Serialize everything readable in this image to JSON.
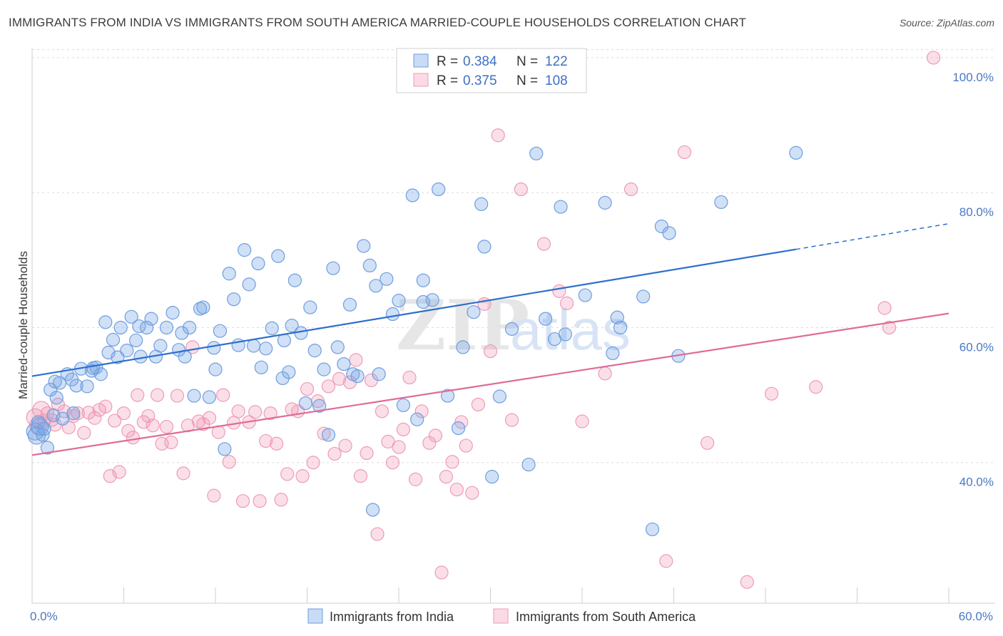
{
  "title": "IMMIGRANTS FROM INDIA VS IMMIGRANTS FROM SOUTH AMERICA MARRIED-COUPLE HOUSEHOLDS CORRELATION CHART",
  "source": "Source: ZipAtlas.com",
  "watermark": {
    "zip": "ZIP",
    "atlas": "atlas"
  },
  "colors": {
    "india_fill": "rgba(120,165,230,0.35)",
    "india_stroke": "#6f9ede",
    "india_line": "#2e6fcc",
    "sa_fill": "rgba(240,150,180,0.30)",
    "sa_stroke": "#ee9bb8",
    "sa_line": "#e06b96"
  },
  "legend": {
    "rows": [
      {
        "r_label": "R = ",
        "r_value": "0.384",
        "n_label": "N = ",
        "n_value": "122"
      },
      {
        "r_label": "R = ",
        "r_value": "0.375",
        "n_label": "N = ",
        "n_value": "108"
      }
    ]
  },
  "chart_data": {
    "type": "scatter",
    "ylabel": "Married-couple Households",
    "xlim": [
      0,
      60
    ],
    "ylim": [
      20,
      102
    ],
    "x_tick_labels": [
      "0.0%",
      "60.0%"
    ],
    "y_ticks": [
      {
        "value": 40,
        "label": "40.0%"
      },
      {
        "value": 60,
        "label": "60.0%"
      },
      {
        "value": 80,
        "label": "80.0%"
      },
      {
        "value": 100,
        "label": "100.0%"
      }
    ],
    "series": [
      {
        "name": "Immigrants from India",
        "r": 0.384,
        "n": 122,
        "trend": {
          "x0": 0,
          "y0": 52.8,
          "x1": 50,
          "y1": 71.6,
          "dash_to_x": 60,
          "dash_to_y": 75.4
        },
        "points": [
          [
            0.2,
            44.6
          ],
          [
            0.3,
            44.0
          ],
          [
            0.5,
            45.3
          ],
          [
            0.7,
            44.1
          ],
          [
            1.0,
            42.2
          ],
          [
            1.2,
            50.8
          ],
          [
            1.4,
            47.0
          ],
          [
            1.6,
            49.6
          ],
          [
            1.8,
            51.8
          ],
          [
            2.0,
            46.5
          ],
          [
            2.3,
            53.1
          ],
          [
            2.6,
            52.3
          ],
          [
            2.9,
            51.4
          ],
          [
            3.2,
            53.9
          ],
          [
            3.6,
            51.3
          ],
          [
            3.9,
            53.6
          ],
          [
            4.2,
            54.1
          ],
          [
            4.5,
            53.1
          ],
          [
            4.8,
            60.8
          ],
          [
            5.0,
            56.3
          ],
          [
            5.3,
            58.2
          ],
          [
            5.6,
            55.6
          ],
          [
            5.8,
            60.0
          ],
          [
            6.2,
            56.6
          ],
          [
            6.5,
            61.6
          ],
          [
            6.8,
            58.1
          ],
          [
            7.1,
            55.7
          ],
          [
            7.5,
            60.0
          ],
          [
            7.8,
            61.3
          ],
          [
            8.1,
            55.7
          ],
          [
            8.4,
            57.3
          ],
          [
            8.8,
            60.0
          ],
          [
            9.2,
            62.2
          ],
          [
            9.6,
            56.7
          ],
          [
            10.0,
            55.7
          ],
          [
            10.3,
            60.0
          ],
          [
            10.6,
            49.9
          ],
          [
            11.0,
            62.8
          ],
          [
            11.2,
            63.0
          ],
          [
            11.6,
            49.7
          ],
          [
            11.9,
            57.0
          ],
          [
            12.3,
            59.5
          ],
          [
            12.6,
            42.0
          ],
          [
            12.9,
            68.0
          ],
          [
            13.2,
            64.2
          ],
          [
            13.5,
            57.4
          ],
          [
            13.9,
            71.5
          ],
          [
            14.2,
            66.4
          ],
          [
            14.5,
            57.3
          ],
          [
            14.8,
            69.5
          ],
          [
            15.0,
            54.1
          ],
          [
            15.3,
            56.9
          ],
          [
            15.7,
            59.9
          ],
          [
            16.1,
            70.6
          ],
          [
            16.4,
            52.5
          ],
          [
            16.8,
            53.4
          ],
          [
            17.0,
            60.3
          ],
          [
            17.2,
            67.0
          ],
          [
            17.6,
            59.2
          ],
          [
            17.9,
            48.8
          ],
          [
            18.2,
            63.0
          ],
          [
            18.5,
            56.6
          ],
          [
            18.8,
            48.4
          ],
          [
            19.1,
            53.8
          ],
          [
            19.4,
            44.1
          ],
          [
            19.7,
            68.8
          ],
          [
            20.0,
            57.1
          ],
          [
            20.4,
            54.6
          ],
          [
            20.8,
            63.4
          ],
          [
            21.0,
            53.1
          ],
          [
            21.3,
            52.8
          ],
          [
            21.7,
            72.1
          ],
          [
            22.1,
            69.2
          ],
          [
            22.5,
            66.2
          ],
          [
            22.7,
            53.1
          ],
          [
            23.2,
            67.2
          ],
          [
            23.6,
            62.0
          ],
          [
            24.0,
            64.0
          ],
          [
            24.3,
            48.5
          ],
          [
            24.9,
            79.6
          ],
          [
            25.2,
            46.4
          ],
          [
            25.6,
            67.0
          ],
          [
            26.2,
            64.1
          ],
          [
            26.6,
            80.5
          ],
          [
            27.2,
            49.9
          ],
          [
            27.9,
            45.1
          ],
          [
            28.2,
            57.1
          ],
          [
            28.9,
            62.3
          ],
          [
            29.4,
            78.3
          ],
          [
            29.6,
            72.0
          ],
          [
            30.1,
            37.9
          ],
          [
            30.6,
            49.8
          ],
          [
            31.4,
            59.8
          ],
          [
            32.5,
            39.7
          ],
          [
            33.0,
            85.8
          ],
          [
            33.6,
            61.3
          ],
          [
            34.2,
            58.3
          ],
          [
            34.6,
            77.9
          ],
          [
            34.9,
            59.0
          ],
          [
            36.2,
            64.8
          ],
          [
            37.5,
            78.5
          ],
          [
            38.0,
            56.2
          ],
          [
            38.3,
            61.5
          ],
          [
            38.5,
            60.0
          ],
          [
            40.0,
            64.6
          ],
          [
            40.6,
            30.1
          ],
          [
            41.2,
            75.0
          ],
          [
            41.7,
            74.0
          ],
          [
            42.3,
            55.8
          ],
          [
            45.1,
            78.6
          ],
          [
            50.0,
            85.9
          ],
          [
            22.3,
            33.0
          ],
          [
            25.6,
            63.8
          ],
          [
            16.5,
            58.1
          ],
          [
            12.0,
            53.8
          ],
          [
            9.8,
            59.2
          ],
          [
            7.0,
            60.2
          ],
          [
            4.0,
            54.0
          ],
          [
            2.7,
            47.3
          ],
          [
            1.5,
            52.0
          ],
          [
            0.4,
            46.0
          ],
          [
            0.8,
            45.0
          ]
        ]
      },
      {
        "name": "Immigrants from South America",
        "r": 0.375,
        "n": 108,
        "trend": {
          "x0": 0,
          "y0": 41.1,
          "x1": 60,
          "y1": 62.1
        },
        "points": [
          [
            0.2,
            46.7
          ],
          [
            0.4,
            45.5
          ],
          [
            0.6,
            47.8
          ],
          [
            0.8,
            46.2
          ],
          [
            1.0,
            47.3
          ],
          [
            1.3,
            46.3
          ],
          [
            1.5,
            45.6
          ],
          [
            1.7,
            48.6
          ],
          [
            2.1,
            47.6
          ],
          [
            2.4,
            45.2
          ],
          [
            2.7,
            46.9
          ],
          [
            3.0,
            47.3
          ],
          [
            3.4,
            44.4
          ],
          [
            3.7,
            47.4
          ],
          [
            4.1,
            46.6
          ],
          [
            4.4,
            47.8
          ],
          [
            4.8,
            48.3
          ],
          [
            5.1,
            38.0
          ],
          [
            5.4,
            46.2
          ],
          [
            5.7,
            38.6
          ],
          [
            6.0,
            47.3
          ],
          [
            6.3,
            44.7
          ],
          [
            6.6,
            43.7
          ],
          [
            6.9,
            50.0
          ],
          [
            7.3,
            46.0
          ],
          [
            7.6,
            46.9
          ],
          [
            7.9,
            45.5
          ],
          [
            8.2,
            50.0
          ],
          [
            8.5,
            42.8
          ],
          [
            8.8,
            45.3
          ],
          [
            9.1,
            43.0
          ],
          [
            9.5,
            49.9
          ],
          [
            9.9,
            38.4
          ],
          [
            10.2,
            45.5
          ],
          [
            10.5,
            57.1
          ],
          [
            10.9,
            46.1
          ],
          [
            11.2,
            45.7
          ],
          [
            11.6,
            46.6
          ],
          [
            11.9,
            35.1
          ],
          [
            12.2,
            44.5
          ],
          [
            12.5,
            50.0
          ],
          [
            12.9,
            40.1
          ],
          [
            13.2,
            45.9
          ],
          [
            13.5,
            47.6
          ],
          [
            13.8,
            34.3
          ],
          [
            14.2,
            46.0
          ],
          [
            14.6,
            47.5
          ],
          [
            14.9,
            34.3
          ],
          [
            15.3,
            43.2
          ],
          [
            15.6,
            47.3
          ],
          [
            16.0,
            42.8
          ],
          [
            16.3,
            34.5
          ],
          [
            16.7,
            38.3
          ],
          [
            17.0,
            47.9
          ],
          [
            17.4,
            47.6
          ],
          [
            17.7,
            38.0
          ],
          [
            18.0,
            50.9
          ],
          [
            18.4,
            40.0
          ],
          [
            18.7,
            49.1
          ],
          [
            19.1,
            44.3
          ],
          [
            19.4,
            51.3
          ],
          [
            19.8,
            41.3
          ],
          [
            20.1,
            52.4
          ],
          [
            20.5,
            42.5
          ],
          [
            20.8,
            51.9
          ],
          [
            21.2,
            55.2
          ],
          [
            21.5,
            38.0
          ],
          [
            21.9,
            41.4
          ],
          [
            22.2,
            52.2
          ],
          [
            22.6,
            29.4
          ],
          [
            22.9,
            47.6
          ],
          [
            23.3,
            43.1
          ],
          [
            23.6,
            40.0
          ],
          [
            24.0,
            42.3
          ],
          [
            24.3,
            44.9
          ],
          [
            24.7,
            52.6
          ],
          [
            25.1,
            37.5
          ],
          [
            25.5,
            47.6
          ],
          [
            26.0,
            42.9
          ],
          [
            26.4,
            44.0
          ],
          [
            26.8,
            23.7
          ],
          [
            27.1,
            37.9
          ],
          [
            27.5,
            40.1
          ],
          [
            27.8,
            36.0
          ],
          [
            28.1,
            46.0
          ],
          [
            28.4,
            42.5
          ],
          [
            28.8,
            35.5
          ],
          [
            29.2,
            48.6
          ],
          [
            29.6,
            63.5
          ],
          [
            30.0,
            56.5
          ],
          [
            30.5,
            88.5
          ],
          [
            31.4,
            46.3
          ],
          [
            32.0,
            80.5
          ],
          [
            33.5,
            72.4
          ],
          [
            34.5,
            65.4
          ],
          [
            35.0,
            63.6
          ],
          [
            36.0,
            46.1
          ],
          [
            37.5,
            53.2
          ],
          [
            39.2,
            80.5
          ],
          [
            41.5,
            25.4
          ],
          [
            42.7,
            86.0
          ],
          [
            44.2,
            42.9
          ],
          [
            46.8,
            22.3
          ],
          [
            48.4,
            50.2
          ],
          [
            51.3,
            51.2
          ],
          [
            55.8,
            62.9
          ],
          [
            56.1,
            60.0
          ],
          [
            59.0,
            100.0
          ]
        ]
      }
    ]
  },
  "bottom_legend": [
    {
      "label": "Immigrants from India"
    },
    {
      "label": "Immigrants from South America"
    }
  ]
}
